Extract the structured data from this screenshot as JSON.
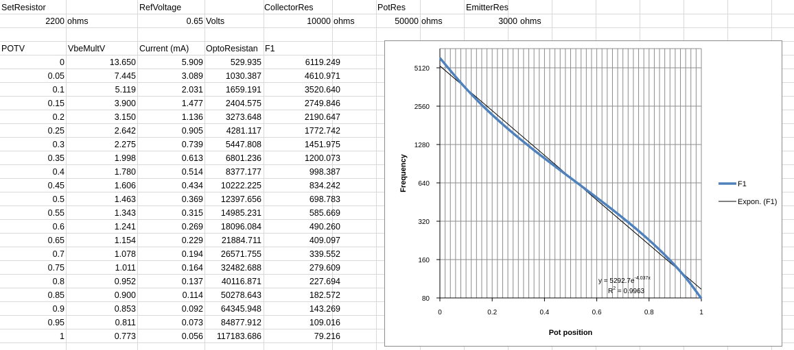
{
  "params": {
    "set_resistor": {
      "label": "SetResistor",
      "value": "2200",
      "unit": "ohms"
    },
    "ref_voltage": {
      "label": "RefVoltage",
      "value": "0.65",
      "unit": "Volts"
    },
    "collector_res": {
      "label": "CollectorRes",
      "value": "10000",
      "unit": "ohms"
    },
    "pot_res": {
      "label": "PotRes",
      "value": "50000",
      "unit": "ohms"
    },
    "emitter_res": {
      "label": "EmitterRes",
      "value": "3000",
      "unit": "ohms"
    }
  },
  "table": {
    "headers": [
      "POTV",
      "VbeMultV",
      "Current (mA)",
      "OptoResistan",
      "F1"
    ],
    "rows": [
      [
        "0",
        "13.650",
        "5.909",
        "529.935",
        "6119.249"
      ],
      [
        "0.05",
        "7.445",
        "3.089",
        "1030.387",
        "4610.971"
      ],
      [
        "0.1",
        "5.119",
        "2.031",
        "1659.191",
        "3520.640"
      ],
      [
        "0.15",
        "3.900",
        "1.477",
        "2404.575",
        "2749.846"
      ],
      [
        "0.2",
        "3.150",
        "1.136",
        "3273.648",
        "2190.647"
      ],
      [
        "0.25",
        "2.642",
        "0.905",
        "4281.117",
        "1772.742"
      ],
      [
        "0.3",
        "2.275",
        "0.739",
        "5447.808",
        "1451.975"
      ],
      [
        "0.35",
        "1.998",
        "0.613",
        "6801.236",
        "1200.073"
      ],
      [
        "0.4",
        "1.780",
        "0.514",
        "8377.177",
        "998.387"
      ],
      [
        "0.45",
        "1.606",
        "0.434",
        "10222.225",
        "834.242"
      ],
      [
        "0.5",
        "1.463",
        "0.369",
        "12397.656",
        "698.783"
      ],
      [
        "0.55",
        "1.343",
        "0.315",
        "14985.231",
        "585.669"
      ],
      [
        "0.6",
        "1.241",
        "0.269",
        "18096.084",
        "490.260"
      ],
      [
        "0.65",
        "1.154",
        "0.229",
        "21884.711",
        "409.097"
      ],
      [
        "0.7",
        "1.078",
        "0.194",
        "26571.755",
        "339.552"
      ],
      [
        "0.75",
        "1.011",
        "0.164",
        "32482.688",
        "279.609"
      ],
      [
        "0.8",
        "0.952",
        "0.137",
        "40116.871",
        "227.694"
      ],
      [
        "0.85",
        "0.900",
        "0.114",
        "50278.643",
        "182.572"
      ],
      [
        "0.9",
        "0.853",
        "0.092",
        "64345.948",
        "143.269"
      ],
      [
        "0.95",
        "0.811",
        "0.073",
        "84877.912",
        "109.016"
      ],
      [
        "1",
        "0.773",
        "0.056",
        "117183.686",
        "79.216"
      ]
    ]
  },
  "chart_data": {
    "type": "scatter",
    "title": "",
    "xlabel": "Pot position",
    "ylabel": "Frequency",
    "xlim": [
      0,
      1
    ],
    "ylim": [
      80,
      7240
    ],
    "y_scale": "log2",
    "x_ticks": [
      "0",
      "0.2",
      "0.4",
      "0.6",
      "0.8",
      "1"
    ],
    "y_ticks": [
      "80",
      "160",
      "320",
      "640",
      "1280",
      "2560",
      "5120"
    ],
    "grid": true,
    "legend_position": "right",
    "series": [
      {
        "name": "F1",
        "color": "#4f81bd",
        "x": [
          0,
          0.05,
          0.1,
          0.15,
          0.2,
          0.25,
          0.3,
          0.35,
          0.4,
          0.45,
          0.5,
          0.55,
          0.6,
          0.65,
          0.7,
          0.75,
          0.8,
          0.85,
          0.9,
          0.95,
          1
        ],
        "y": [
          6119.249,
          4610.971,
          3520.64,
          2749.846,
          2190.647,
          1772.742,
          1451.975,
          1200.073,
          998.387,
          834.242,
          698.783,
          585.669,
          490.26,
          409.097,
          339.552,
          279.609,
          227.694,
          182.572,
          143.269,
          109.016,
          79.216
        ]
      },
      {
        "name": "Expon. (F1)",
        "color": "#000000",
        "trendline": {
          "a": 5292.7,
          "b": -4.037
        },
        "x": [
          0,
          1
        ],
        "y": [
          5292.7,
          93.5
        ]
      }
    ],
    "annotation": {
      "equation": "y = 5292.7e",
      "exponent": "-4.037x",
      "r2_label": "R",
      "r2_sup": "2",
      "r2_value": " = 0.9963"
    }
  }
}
